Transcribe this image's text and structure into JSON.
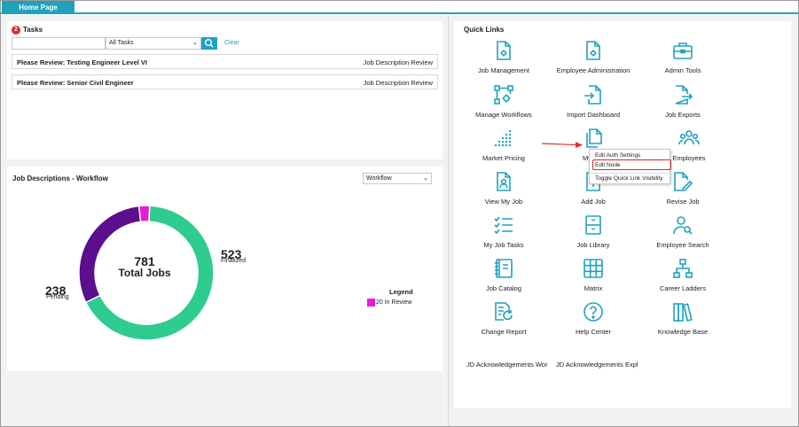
{
  "tabs": [
    {
      "label": "Home Page",
      "active": true
    }
  ],
  "colors": {
    "accent": "#20a2bd",
    "finalized": "#2ecc8f",
    "pending": "#5b0f8c",
    "in_review": "#e81cd8",
    "badge": "#e3262a",
    "highlight": "#d62a2a"
  },
  "tasks": {
    "title": "Tasks",
    "badge_count": "2",
    "search": {
      "value": "",
      "placeholder": ""
    },
    "filter": {
      "selected": "All Tasks"
    },
    "search_icon": "search-icon",
    "clear_label": "Clear",
    "items": [
      {
        "title": "Please Review: Testing Engineer Level VI",
        "type": "Job Description Review"
      },
      {
        "title": "Please Review: Senior Civil Engineer",
        "type": "Job Description Review"
      }
    ]
  },
  "job_descriptions": {
    "title": "Job Descriptions - Workflow",
    "view_select": "Workflow",
    "total_number": "781",
    "total_label": "Total Jobs",
    "finalized": {
      "count": "523",
      "label": "Finalized"
    },
    "pending": {
      "count": "238",
      "label": "Pending"
    },
    "legend_title": "Legend",
    "legend_items": [
      {
        "label": "20 In Review",
        "color": "#e81cd8"
      }
    ]
  },
  "chart_data": {
    "type": "pie",
    "categories": [
      "Finalized",
      "Pending",
      "In Review"
    ],
    "values": [
      523,
      238,
      20
    ],
    "title": "781 Total Jobs",
    "legend_position": "right"
  },
  "quick_links": {
    "title": "Quick Links",
    "items": [
      {
        "label": "Job Management",
        "icon": "document-gear-icon"
      },
      {
        "label": "Employee Administration",
        "icon": "document-gear-icon"
      },
      {
        "label": "Admin Tools",
        "icon": "briefcase-icon"
      },
      {
        "label": "Manage Workflows",
        "icon": "workflow-gear-icon"
      },
      {
        "label": "Import Dashboard",
        "icon": "import-document-icon"
      },
      {
        "label": "Job Exports",
        "icon": "export-document-icon"
      },
      {
        "label": "Market Pricing",
        "icon": "dot-chart-icon"
      },
      {
        "label": "My",
        "icon": "documents-icon"
      },
      {
        "label": "Employees",
        "icon": "people-icon"
      },
      {
        "label": "View My Job",
        "icon": "person-document-icon"
      },
      {
        "label": "Add Job",
        "icon": "add-document-icon"
      },
      {
        "label": "Revise Job",
        "icon": "edit-document-icon"
      },
      {
        "label": "My Job Tasks",
        "icon": "checklist-icon"
      },
      {
        "label": "Job Library",
        "icon": "file-cabinet-icon"
      },
      {
        "label": "Employee Search",
        "icon": "person-search-icon"
      },
      {
        "label": "Job Catalog",
        "icon": "catalog-book-icon"
      },
      {
        "label": "Matrix",
        "icon": "grid-icon"
      },
      {
        "label": "Career Ladders",
        "icon": "org-chart-icon"
      },
      {
        "label": "Change Report",
        "icon": "report-refresh-icon"
      },
      {
        "label": "Help Center",
        "icon": "help-icon"
      },
      {
        "label": "Knowledge Base",
        "icon": "books-icon"
      }
    ],
    "text_links": [
      "JD Acknowledgements Wor",
      "JD Acknowledgements Expl"
    ]
  },
  "context_menu": {
    "items": [
      "Edit Auth Settings",
      "Edit Node",
      "Toggle Quick Link Visibility"
    ],
    "highlighted": "Edit Node"
  }
}
